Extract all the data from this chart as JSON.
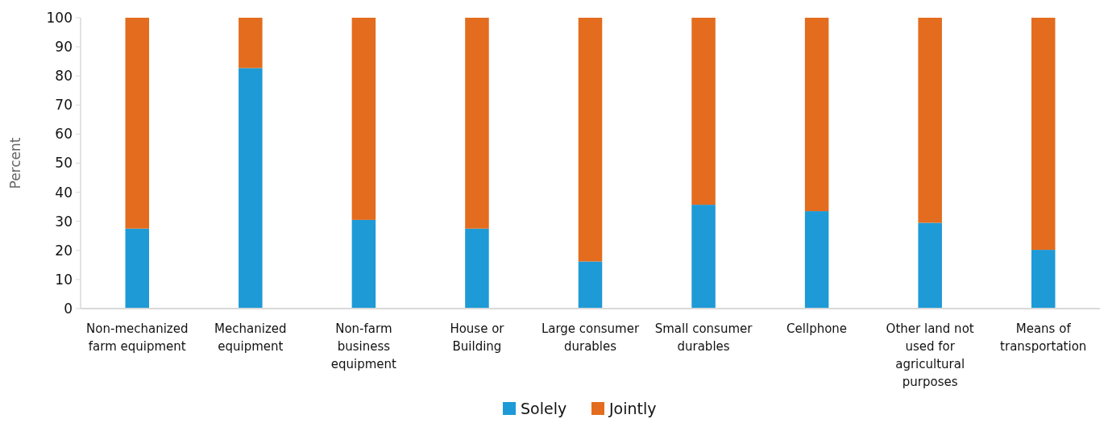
{
  "chart_data": {
    "type": "bar",
    "stacked": true,
    "ylabel": "Percent",
    "categories": [
      "Non-mechanized farm equipment",
      "Mechanized equipment",
      "Non-farm business equipment",
      "House or Building",
      "Large consumer durables",
      "Small consumer durables",
      "Cellphone",
      "Other land not used for agricultural purposes",
      "Means of transportation"
    ],
    "series": [
      {
        "name": "Solely",
        "color": "#1e9ad6",
        "values": [
          27.5,
          82.7,
          30.5,
          27.5,
          16.2,
          35.7,
          33.5,
          29.5,
          20.2
        ]
      },
      {
        "name": "Jointly",
        "color": "#e36c1e",
        "values": [
          72.5,
          17.3,
          69.5,
          72.5,
          83.8,
          64.3,
          66.5,
          70.5,
          79.8
        ]
      }
    ],
    "ylim": [
      0,
      100
    ],
    "yticks": [
      0,
      10,
      20,
      30,
      40,
      50,
      60,
      70,
      80,
      90,
      100
    ],
    "grid": false,
    "legend": "bottom"
  }
}
